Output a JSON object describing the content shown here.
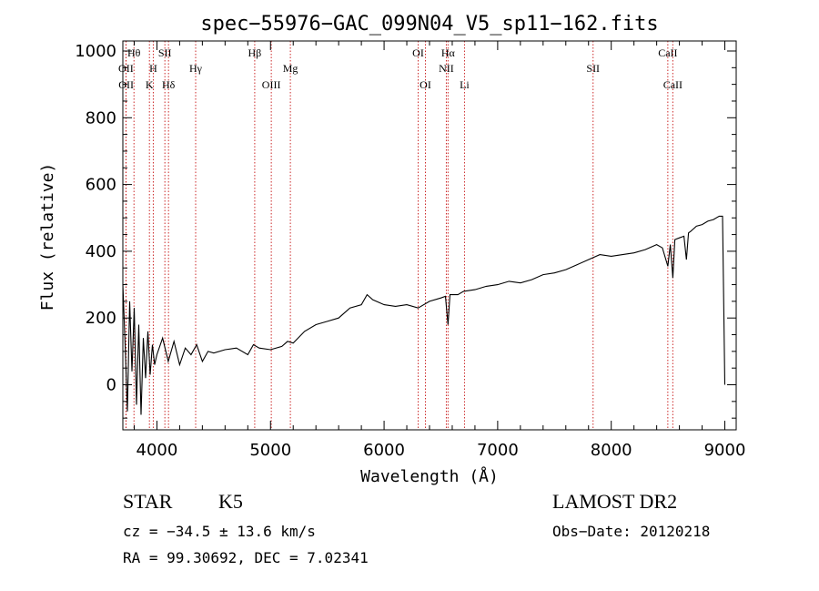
{
  "chart_data": {
    "type": "line",
    "title": "spec−55976−GAC_099N04_V5_sp11−162.fits",
    "xlabel": "Wavelength (Å)",
    "ylabel": "Flux (relative)",
    "xlim": [
      3700,
      9100
    ],
    "ylim": [
      -135,
      1030
    ],
    "xticks": [
      4000,
      5000,
      6000,
      7000,
      8000,
      9000
    ],
    "yticks": [
      0,
      200,
      400,
      600,
      800,
      1000
    ],
    "x_tick_labels": [
      "4000",
      "5000",
      "6000",
      "7000",
      "8000",
      "9000"
    ],
    "y_tick_labels": [
      "0",
      "200",
      "400",
      "600",
      "800",
      "1000"
    ],
    "grid": false,
    "series": [
      {
        "x": [
          3700,
          3720,
          3740,
          3760,
          3780,
          3800,
          3820,
          3840,
          3860,
          3880,
          3900,
          3920,
          3940,
          3960,
          3980,
          4000,
          4050,
          4100,
          4150,
          4200,
          4250,
          4300,
          4350,
          4400,
          4450,
          4500,
          4600,
          4700,
          4800,
          4850,
          4900,
          5000,
          5100,
          5150,
          5200,
          5300,
          5400,
          5500,
          5600,
          5700,
          5800,
          5850,
          5900,
          6000,
          6100,
          6200,
          6300,
          6400,
          6500,
          6540,
          6563,
          6580,
          6650,
          6700,
          6800,
          6900,
          7000,
          7100,
          7200,
          7300,
          7400,
          7500,
          7600,
          7700,
          7800,
          7900,
          8000,
          8100,
          8200,
          8300,
          8400,
          8450,
          8498,
          8520,
          8542,
          8560,
          8600,
          8640,
          8662,
          8680,
          8700,
          8750,
          8800,
          8850,
          8900,
          8950,
          8980,
          9000
        ],
        "y": [
          300,
          120,
          -80,
          250,
          40,
          230,
          -60,
          180,
          -90,
          140,
          20,
          160,
          30,
          120,
          60,
          90,
          140,
          70,
          130,
          60,
          110,
          90,
          120,
          70,
          100,
          95,
          105,
          110,
          90,
          120,
          110,
          105,
          115,
          130,
          125,
          160,
          180,
          190,
          200,
          230,
          240,
          270,
          255,
          240,
          235,
          240,
          230,
          250,
          260,
          265,
          180,
          270,
          270,
          280,
          285,
          295,
          300,
          310,
          305,
          315,
          330,
          335,
          345,
          360,
          375,
          390,
          385,
          390,
          395,
          405,
          420,
          410,
          355,
          420,
          320,
          435,
          440,
          445,
          375,
          455,
          460,
          475,
          480,
          490,
          495,
          505,
          505,
          0
        ]
      }
    ],
    "line_colors": {
      "spectrum": "#000000",
      "marker": "#cc2a2a"
    },
    "line_markers": [
      {
        "label": "Hθ",
        "x": 3798,
        "row": 0
      },
      {
        "label": "OII",
        "x": 3727,
        "row": 1
      },
      {
        "label": "OII",
        "x": 3729,
        "row": 2
      },
      {
        "label": "SII",
        "x": 4070,
        "row": 0
      },
      {
        "label": "H",
        "x": 3968,
        "row": 1
      },
      {
        "label": "K",
        "x": 3934,
        "row": 2
      },
      {
        "label": "Hδ",
        "x": 4102,
        "row": 2
      },
      {
        "label": "Hγ",
        "x": 4341,
        "row": 1
      },
      {
        "label": "Hβ",
        "x": 4861,
        "row": 0
      },
      {
        "label": "Mg",
        "x": 5175,
        "row": 1
      },
      {
        "label": "OIII",
        "x": 5007,
        "row": 2
      },
      {
        "label": "OI",
        "x": 6300,
        "row": 0
      },
      {
        "label": "OI",
        "x": 6364,
        "row": 2
      },
      {
        "label": "Hα",
        "x": 6563,
        "row": 0
      },
      {
        "label": "NII",
        "x": 6548,
        "row": 1
      },
      {
        "label": "Li",
        "x": 6708,
        "row": 2
      },
      {
        "label": "SII",
        "x": 7840,
        "row": 1
      },
      {
        "label": "CaII",
        "x": 8498,
        "row": 0
      },
      {
        "label": "CaII",
        "x": 8542,
        "row": 2
      }
    ]
  },
  "info": {
    "object_class": "STAR",
    "subclass": "K5",
    "survey": "LAMOST DR2",
    "cz": "cz = −34.5 ± 13.6 km/s",
    "obs_date": "Obs−Date: 20120218",
    "radec": "RA =  99.30692, DEC =   7.02341"
  }
}
